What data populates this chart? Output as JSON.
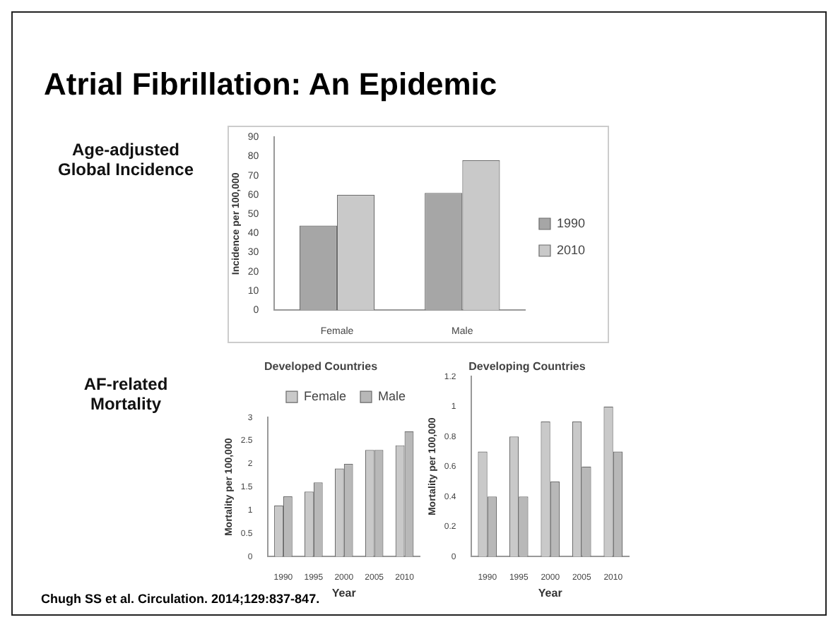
{
  "chart_data": [
    {
      "type": "bar",
      "title": "Atrial Fibrillation: An Epidemic",
      "subtitle": "Age-adjusted Global Incidence",
      "ylabel": "Incidence per 100,000",
      "categories": [
        "Female",
        "Male"
      ],
      "series": [
        {
          "name": "1990",
          "color": "#a6a6a6",
          "values": [
            44,
            61
          ]
        },
        {
          "name": "2010",
          "color": "#c9c9c9",
          "values": [
            60,
            78
          ]
        }
      ],
      "ylim": [
        0,
        90
      ],
      "yticks": [
        0,
        10,
        20,
        30,
        40,
        50,
        60,
        70,
        80,
        90
      ],
      "grid": false,
      "legend": "right"
    },
    {
      "type": "bar",
      "title": "Developed Countries",
      "subtitle": "AF-related Mortality",
      "xlabel": "Year",
      "ylabel": "Mortality per 100,000",
      "categories": [
        "1990",
        "1995",
        "2000",
        "2005",
        "2010"
      ],
      "series": [
        {
          "name": "Female",
          "color": "#c9c9c9",
          "values": [
            1.1,
            1.4,
            1.9,
            2.3,
            2.4
          ]
        },
        {
          "name": "Male",
          "color": "#b8b8b8",
          "values": [
            1.3,
            1.6,
            2.0,
            2.3,
            2.7
          ]
        }
      ],
      "ylim": [
        0,
        3
      ],
      "yticks": [
        0,
        0.5,
        1,
        1.5,
        2,
        2.5,
        3
      ],
      "grid": false,
      "legend": "top right"
    },
    {
      "type": "bar",
      "title": "Developing Countries",
      "xlabel": "Year",
      "ylabel": "Mortality per 100,000",
      "categories": [
        "1990",
        "1995",
        "2000",
        "2005",
        "2010"
      ],
      "series": [
        {
          "color": "#c9c9c9",
          "values": [
            0.7,
            0.8,
            0.9,
            0.9,
            1.0
          ]
        },
        {
          "color": "#b8b8b8",
          "values": [
            0.4,
            0.4,
            0.5,
            0.6,
            0.7
          ]
        }
      ],
      "ylim": [
        0,
        1.2
      ],
      "yticks": [
        0,
        0.2,
        0.4,
        0.6,
        0.8,
        1,
        1.2
      ],
      "grid": false,
      "annotations": [
        "Chugh SS et al. Circulation. 2014;129:837-847."
      ]
    }
  ]
}
